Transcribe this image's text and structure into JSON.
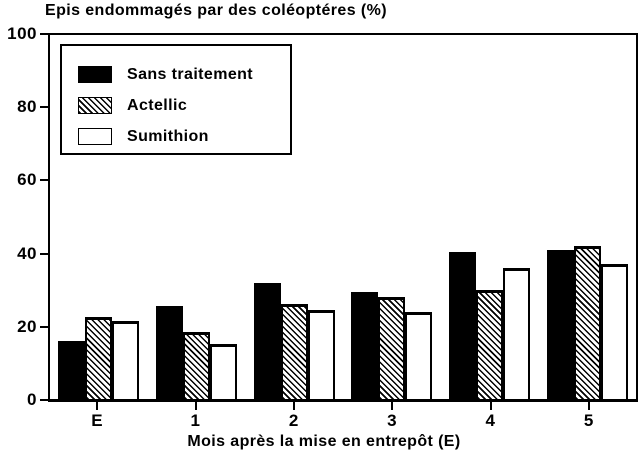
{
  "chart_data": {
    "type": "bar",
    "title": "Epis endommagés par des coléoptéres (%)",
    "xlabel": "Mois après la mise en entrepôt (E)",
    "ylabel": "",
    "categories": [
      "E",
      "1",
      "2",
      "3",
      "4",
      "5"
    ],
    "series": [
      {
        "name": "Sans traitement",
        "pattern": "solid-black",
        "values": [
          16,
          25.5,
          32,
          29.5,
          40.5,
          41
        ]
      },
      {
        "name": "Actellic",
        "pattern": "diagonal-hatch",
        "values": [
          22.5,
          18.5,
          26,
          28,
          30,
          42
        ]
      },
      {
        "name": "Sumithion",
        "pattern": "white",
        "values": [
          21.5,
          15,
          24.5,
          24,
          36,
          37
        ]
      }
    ],
    "ylim": [
      0,
      100
    ],
    "yticks": [
      0,
      20,
      40,
      60,
      80,
      100
    ],
    "grid": false,
    "legend_position": "top-left-inside"
  },
  "colors": {
    "foreground": "#000000",
    "background": "#ffffff"
  }
}
